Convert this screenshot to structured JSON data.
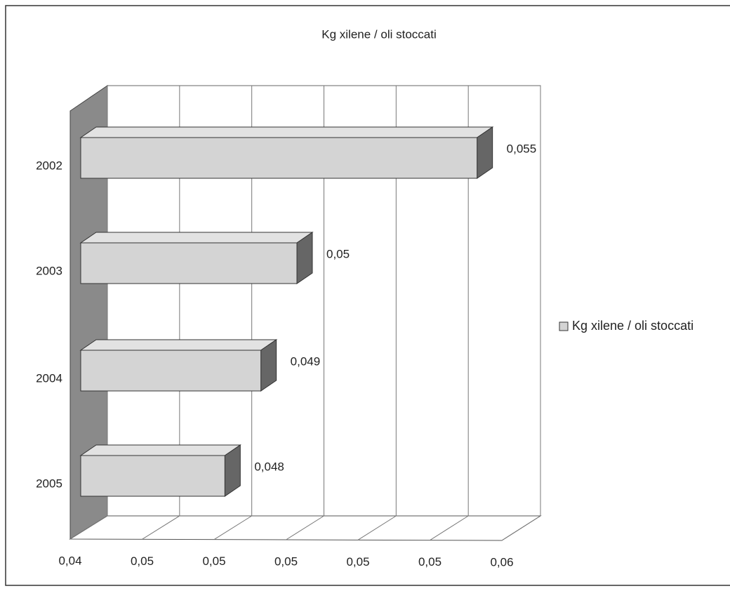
{
  "chart_data": {
    "type": "bar",
    "orientation": "horizontal",
    "title": "Kg xilene / oli stoccati",
    "categories": [
      "2002",
      "2003",
      "2004",
      "2005"
    ],
    "series": [
      {
        "name": "Kg xilene / oli stoccati",
        "color": "#d4d4d4",
        "values": [
          0.055,
          0.05,
          0.049,
          0.048
        ],
        "value_labels": [
          "0,055",
          "0,05",
          "0,049",
          "0,048"
        ]
      }
    ],
    "xlim": [
      0.044,
      0.056
    ],
    "xticks": [
      {
        "value": 0.044,
        "label": "0,04"
      },
      {
        "value": 0.046,
        "label": "0,05"
      },
      {
        "value": 0.048,
        "label": "0,05"
      },
      {
        "value": 0.05,
        "label": "0,05"
      },
      {
        "value": 0.052,
        "label": "0,05"
      },
      {
        "value": 0.054,
        "label": "0,05"
      },
      {
        "value": 0.056,
        "label": "0,06"
      }
    ],
    "grid": true,
    "legend": "right"
  }
}
